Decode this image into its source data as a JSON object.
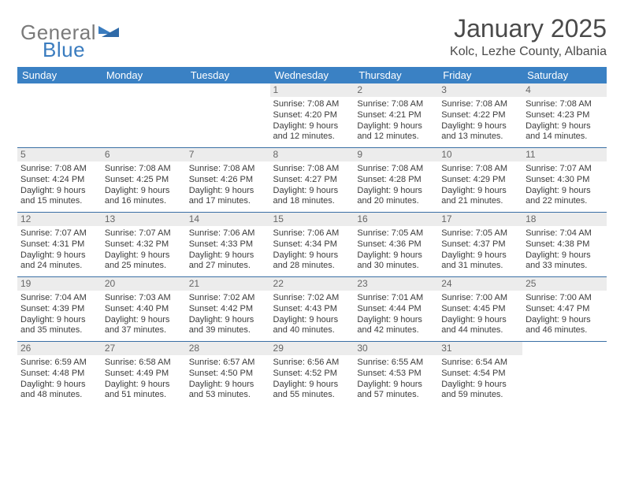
{
  "brand": {
    "name_a": "General",
    "name_b": "Blue"
  },
  "title": "January 2025",
  "location": "Kolc, Lezhe County, Albania",
  "colors": {
    "header_bg": "#3a81c4",
    "header_text": "#ffffff",
    "row_divider": "#3a6fa5",
    "daynum_bg": "#ececec",
    "daynum_text": "#666666",
    "body_text": "#3b3b3b",
    "logo_grey": "#7a7a7a",
    "logo_blue": "#3a7cbf",
    "page_bg": "#ffffff"
  },
  "typography": {
    "title_fontsize": 32,
    "location_fontsize": 16,
    "dow_fontsize": 13,
    "daynum_fontsize": 12,
    "cell_fontsize": 11
  },
  "days_of_week": [
    "Sunday",
    "Monday",
    "Tuesday",
    "Wednesday",
    "Thursday",
    "Friday",
    "Saturday"
  ],
  "weeks": [
    [
      null,
      null,
      null,
      {
        "n": "1",
        "sunrise": "7:08 AM",
        "sunset": "4:20 PM",
        "daylight": "9 hours and 12 minutes."
      },
      {
        "n": "2",
        "sunrise": "7:08 AM",
        "sunset": "4:21 PM",
        "daylight": "9 hours and 12 minutes."
      },
      {
        "n": "3",
        "sunrise": "7:08 AM",
        "sunset": "4:22 PM",
        "daylight": "9 hours and 13 minutes."
      },
      {
        "n": "4",
        "sunrise": "7:08 AM",
        "sunset": "4:23 PM",
        "daylight": "9 hours and 14 minutes."
      }
    ],
    [
      {
        "n": "5",
        "sunrise": "7:08 AM",
        "sunset": "4:24 PM",
        "daylight": "9 hours and 15 minutes."
      },
      {
        "n": "6",
        "sunrise": "7:08 AM",
        "sunset": "4:25 PM",
        "daylight": "9 hours and 16 minutes."
      },
      {
        "n": "7",
        "sunrise": "7:08 AM",
        "sunset": "4:26 PM",
        "daylight": "9 hours and 17 minutes."
      },
      {
        "n": "8",
        "sunrise": "7:08 AM",
        "sunset": "4:27 PM",
        "daylight": "9 hours and 18 minutes."
      },
      {
        "n": "9",
        "sunrise": "7:08 AM",
        "sunset": "4:28 PM",
        "daylight": "9 hours and 20 minutes."
      },
      {
        "n": "10",
        "sunrise": "7:08 AM",
        "sunset": "4:29 PM",
        "daylight": "9 hours and 21 minutes."
      },
      {
        "n": "11",
        "sunrise": "7:07 AM",
        "sunset": "4:30 PM",
        "daylight": "9 hours and 22 minutes."
      }
    ],
    [
      {
        "n": "12",
        "sunrise": "7:07 AM",
        "sunset": "4:31 PM",
        "daylight": "9 hours and 24 minutes."
      },
      {
        "n": "13",
        "sunrise": "7:07 AM",
        "sunset": "4:32 PM",
        "daylight": "9 hours and 25 minutes."
      },
      {
        "n": "14",
        "sunrise": "7:06 AM",
        "sunset": "4:33 PM",
        "daylight": "9 hours and 27 minutes."
      },
      {
        "n": "15",
        "sunrise": "7:06 AM",
        "sunset": "4:34 PM",
        "daylight": "9 hours and 28 minutes."
      },
      {
        "n": "16",
        "sunrise": "7:05 AM",
        "sunset": "4:36 PM",
        "daylight": "9 hours and 30 minutes."
      },
      {
        "n": "17",
        "sunrise": "7:05 AM",
        "sunset": "4:37 PM",
        "daylight": "9 hours and 31 minutes."
      },
      {
        "n": "18",
        "sunrise": "7:04 AM",
        "sunset": "4:38 PM",
        "daylight": "9 hours and 33 minutes."
      }
    ],
    [
      {
        "n": "19",
        "sunrise": "7:04 AM",
        "sunset": "4:39 PM",
        "daylight": "9 hours and 35 minutes."
      },
      {
        "n": "20",
        "sunrise": "7:03 AM",
        "sunset": "4:40 PM",
        "daylight": "9 hours and 37 minutes."
      },
      {
        "n": "21",
        "sunrise": "7:02 AM",
        "sunset": "4:42 PM",
        "daylight": "9 hours and 39 minutes."
      },
      {
        "n": "22",
        "sunrise": "7:02 AM",
        "sunset": "4:43 PM",
        "daylight": "9 hours and 40 minutes."
      },
      {
        "n": "23",
        "sunrise": "7:01 AM",
        "sunset": "4:44 PM",
        "daylight": "9 hours and 42 minutes."
      },
      {
        "n": "24",
        "sunrise": "7:00 AM",
        "sunset": "4:45 PM",
        "daylight": "9 hours and 44 minutes."
      },
      {
        "n": "25",
        "sunrise": "7:00 AM",
        "sunset": "4:47 PM",
        "daylight": "9 hours and 46 minutes."
      }
    ],
    [
      {
        "n": "26",
        "sunrise": "6:59 AM",
        "sunset": "4:48 PM",
        "daylight": "9 hours and 48 minutes."
      },
      {
        "n": "27",
        "sunrise": "6:58 AM",
        "sunset": "4:49 PM",
        "daylight": "9 hours and 51 minutes."
      },
      {
        "n": "28",
        "sunrise": "6:57 AM",
        "sunset": "4:50 PM",
        "daylight": "9 hours and 53 minutes."
      },
      {
        "n": "29",
        "sunrise": "6:56 AM",
        "sunset": "4:52 PM",
        "daylight": "9 hours and 55 minutes."
      },
      {
        "n": "30",
        "sunrise": "6:55 AM",
        "sunset": "4:53 PM",
        "daylight": "9 hours and 57 minutes."
      },
      {
        "n": "31",
        "sunrise": "6:54 AM",
        "sunset": "4:54 PM",
        "daylight": "9 hours and 59 minutes."
      },
      null
    ]
  ],
  "labels": {
    "sunrise": "Sunrise:",
    "sunset": "Sunset:",
    "daylight": "Daylight:"
  }
}
